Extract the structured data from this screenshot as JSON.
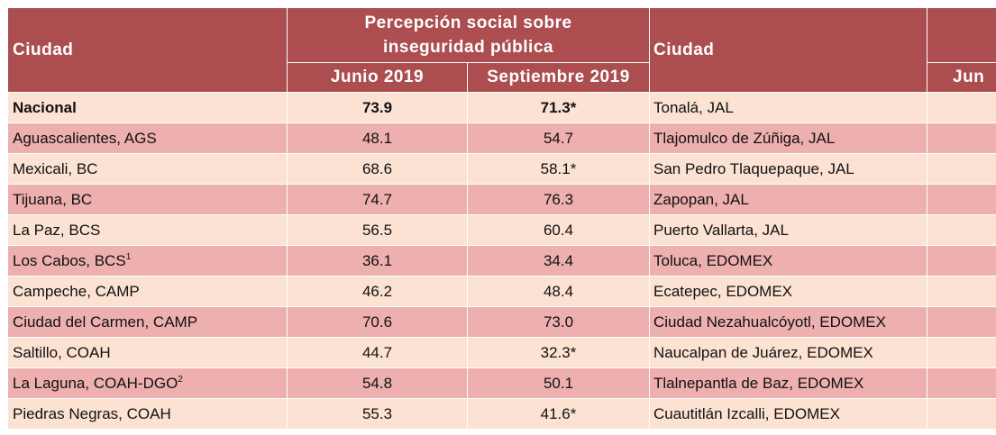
{
  "header": {
    "city_label": "Ciudad",
    "group_label_line1": "Percepción social sobre",
    "group_label_line2": "inseguridad pública",
    "col_june": "Junio 2019",
    "col_sept": "Septiembre 2019",
    "city2_label": "Ciudad",
    "clipped_col_june": "Jun"
  },
  "rows": [
    {
      "city": "Nacional",
      "sup": "",
      "june": "73.9",
      "sept": "71.3*",
      "city2": "Tonalá, JAL"
    },
    {
      "city": "Aguascalientes, AGS",
      "sup": "",
      "june": "48.1",
      "sept": "54.7",
      "city2": "Tlajomulco de Zúñiga, JAL"
    },
    {
      "city": "Mexicali, BC",
      "sup": "",
      "june": "68.6",
      "sept": "58.1*",
      "city2": "San Pedro Tlaquepaque, JAL"
    },
    {
      "city": "Tijuana, BC",
      "sup": "",
      "june": "74.7",
      "sept": "76.3",
      "city2": "Zapopan, JAL"
    },
    {
      "city": "La Paz, BCS",
      "sup": "",
      "june": "56.5",
      "sept": "60.4",
      "city2": "Puerto Vallarta, JAL"
    },
    {
      "city": "Los Cabos, BCS",
      "sup": "1",
      "june": "36.1",
      "sept": "34.4",
      "city2": "Toluca, EDOMEX"
    },
    {
      "city": "Campeche, CAMP",
      "sup": "",
      "june": "46.2",
      "sept": "48.4",
      "city2": "Ecatepec, EDOMEX"
    },
    {
      "city": "Ciudad del Carmen, CAMP",
      "sup": "",
      "june": "70.6",
      "sept": "73.0",
      "city2": "Ciudad Nezahualcóyotl, EDOMEX"
    },
    {
      "city": "Saltillo, COAH",
      "sup": "",
      "june": "44.7",
      "sept": "32.3*",
      "city2": "Naucalpan de Juárez, EDOMEX"
    },
    {
      "city": "La Laguna, COAH-DGO",
      "sup": "2",
      "june": "54.8",
      "sept": "50.1",
      "city2": "Tlalnepantla de Baz, EDOMEX"
    },
    {
      "city": "Piedras Negras, COAH",
      "sup": "",
      "june": "55.3",
      "sept": "41.6*",
      "city2": "Cuautitlán Izcalli, EDOMEX"
    }
  ]
}
